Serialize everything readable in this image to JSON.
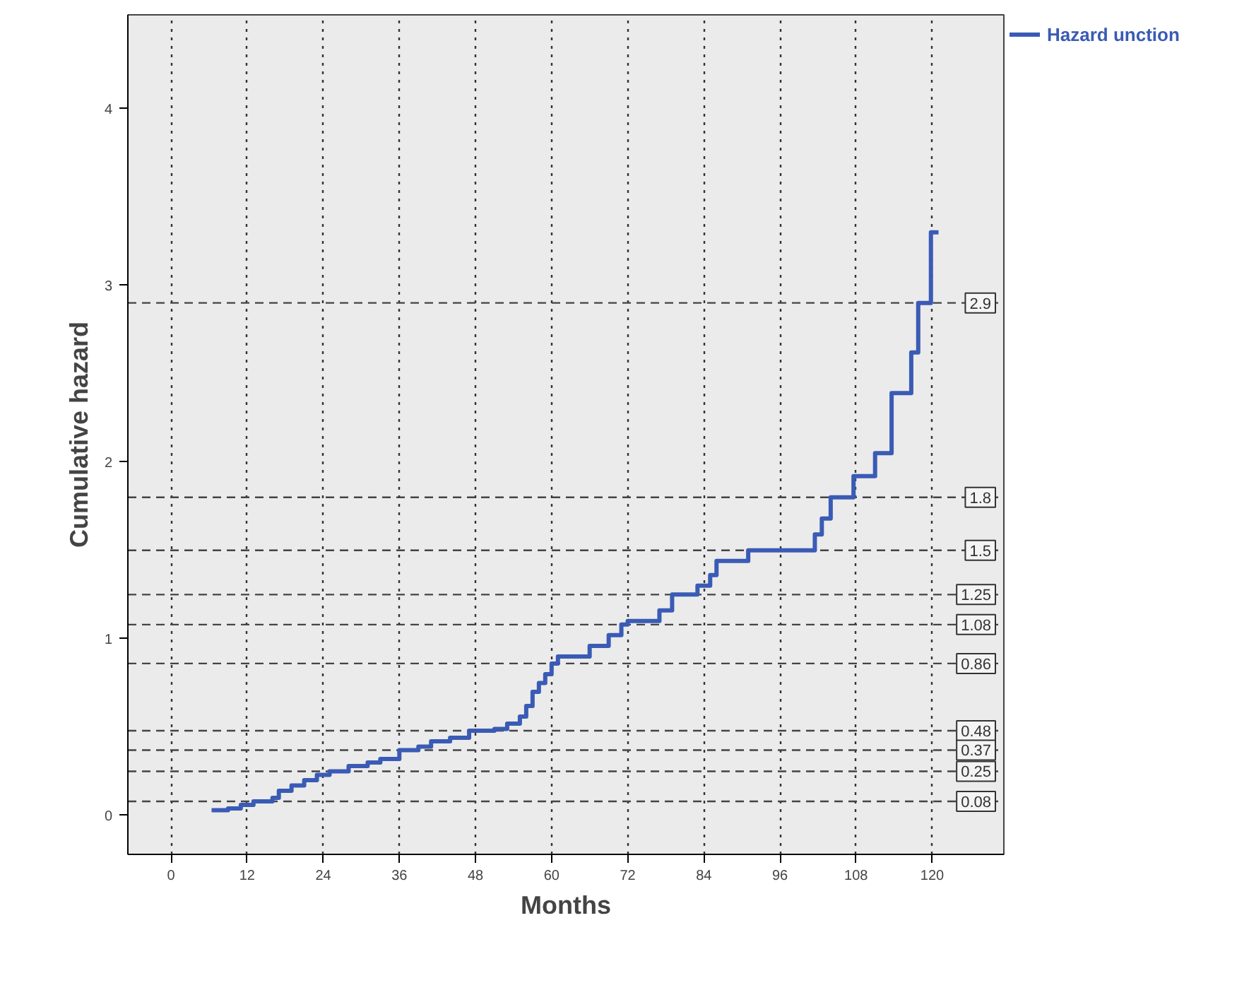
{
  "chart_data": {
    "type": "step",
    "xlabel": "Months",
    "ylabel": "Cumulative hazard",
    "x": [
      6.4,
      9,
      11,
      13,
      16,
      17,
      19,
      21,
      23,
      25,
      28,
      31,
      33,
      36,
      39,
      41,
      44,
      47,
      51,
      53,
      55,
      56,
      57,
      58,
      59,
      60,
      61,
      66,
      69,
      71,
      72,
      77,
      79,
      83,
      85,
      86,
      91,
      101.5,
      102.6,
      104,
      107.6,
      111,
      113.6,
      116.7,
      117.8,
      119.8,
      121
    ],
    "series": [
      {
        "name": "Hazard unction",
        "color": "#3a5bb5",
        "values": [
          0.03,
          0.04,
          0.06,
          0.08,
          0.1,
          0.14,
          0.17,
          0.2,
          0.23,
          0.25,
          0.28,
          0.3,
          0.32,
          0.37,
          0.39,
          0.42,
          0.44,
          0.48,
          0.49,
          0.52,
          0.56,
          0.62,
          0.7,
          0.75,
          0.8,
          0.86,
          0.9,
          0.96,
          1.02,
          1.08,
          1.1,
          1.16,
          1.25,
          1.3,
          1.36,
          1.44,
          1.5,
          1.59,
          1.68,
          1.8,
          1.92,
          2.05,
          2.39,
          2.62,
          2.9,
          3.3,
          3.3
        ]
      }
    ],
    "xlim": [
      -6.8,
      131.3
    ],
    "ylim": [
      -0.22,
      4.53
    ],
    "xticks": [
      0,
      12,
      24,
      36,
      48,
      60,
      72,
      84,
      96,
      108,
      120
    ],
    "yticks": [
      0,
      1,
      2,
      3,
      4
    ],
    "ref_lines": [
      {
        "axis": "y",
        "value": 2.9,
        "label": "2.9"
      },
      {
        "axis": "y",
        "value": 1.8,
        "label": "1.8"
      },
      {
        "axis": "y",
        "value": 1.5,
        "label": "1.5"
      },
      {
        "axis": "y",
        "value": 1.25,
        "label": "1.25"
      },
      {
        "axis": "y",
        "value": 1.08,
        "label": "1.08"
      },
      {
        "axis": "y",
        "value": 0.86,
        "label": "0.86"
      },
      {
        "axis": "y",
        "value": 0.48,
        "label": "0.48"
      },
      {
        "axis": "y",
        "value": 0.37,
        "label": "0.37"
      },
      {
        "axis": "y",
        "value": 0.25,
        "label": "0.25"
      },
      {
        "axis": "y",
        "value": 0.08,
        "label": "0.08"
      }
    ],
    "grid": "x",
    "legend": "top right",
    "line_style": "solid"
  }
}
